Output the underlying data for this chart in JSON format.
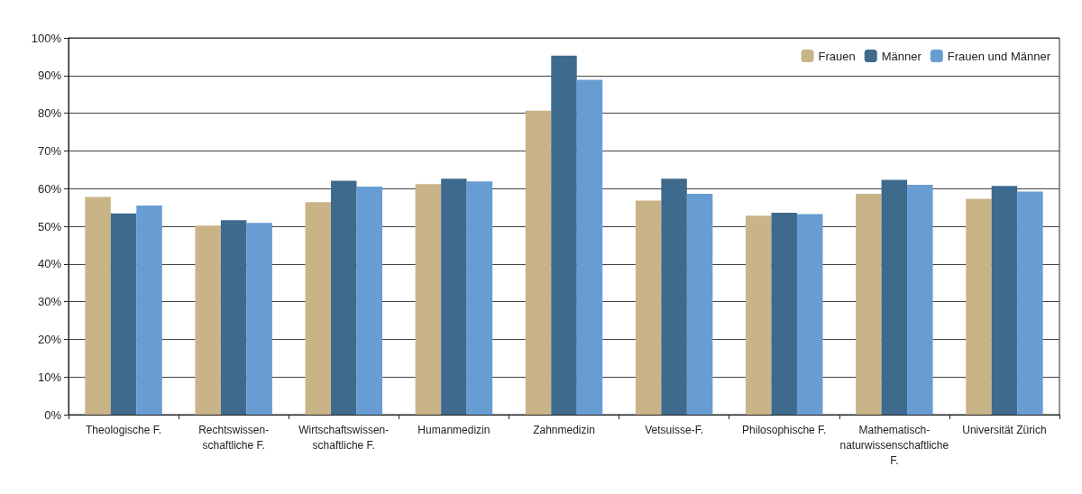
{
  "chart_data": {
    "type": "bar",
    "categories": [
      "Theologische F.",
      "Rechtswissen-\nschaftliche F.",
      "Wirtschaftswissen-\nschaftliche F.",
      "Humanmedizin",
      "Zahnmedizin",
      "Vetsuisse-F.",
      "Philosophische F.",
      "Mathematisch-\nnaturwissenschaftliche\nF.",
      "Universität Zürich"
    ],
    "series": [
      {
        "name": "Frauen",
        "color": "#c9b487",
        "values": [
          57.8,
          50.2,
          56.4,
          61.2,
          80.7,
          56.8,
          52.8,
          58.6,
          57.3
        ]
      },
      {
        "name": "Männer",
        "color": "#3e6a8e",
        "values": [
          53.4,
          51.6,
          62.1,
          62.6,
          95.3,
          62.6,
          53.6,
          62.3,
          60.7
        ]
      },
      {
        "name": "Frauen und Männer",
        "color": "#689dd3",
        "values": [
          55.5,
          50.9,
          60.5,
          61.9,
          88.9,
          58.6,
          53.2,
          61.0,
          59.2
        ]
      }
    ],
    "ylim": [
      0,
      100
    ],
    "yticks": [
      {
        "value": 0,
        "label": "0%"
      },
      {
        "value": 10,
        "label": "10%"
      },
      {
        "value": 20,
        "label": "20%"
      },
      {
        "value": 30,
        "label": "30%"
      },
      {
        "value": 40,
        "label": "40%"
      },
      {
        "value": 50,
        "label": "50%"
      },
      {
        "value": 60,
        "label": "60%"
      },
      {
        "value": 70,
        "label": "70%"
      },
      {
        "value": 80,
        "label": "80%"
      },
      {
        "value": 90,
        "label": "90%"
      },
      {
        "value": 100,
        "label": "100%"
      }
    ],
    "grid": "y",
    "legend": "top right"
  }
}
